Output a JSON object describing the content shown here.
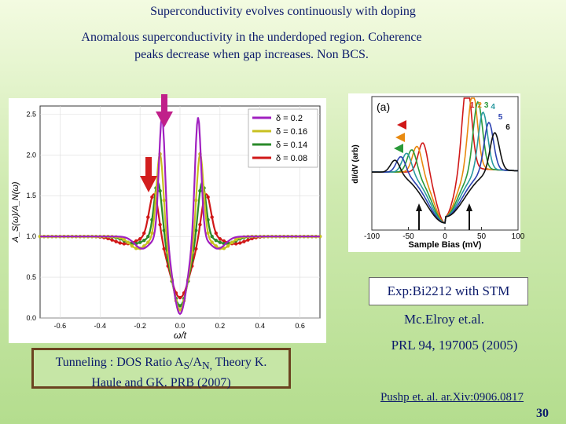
{
  "slide": {
    "title": "Superconductivity evolves continuously with doping",
    "subtitle_line1": "Anomalous superconductivity in the underdoped region. Coherence",
    "subtitle_line2": "peaks decrease when gap increases. Non BCS.",
    "exp_label": "Exp:Bi2212 with STM",
    "authors": "Mc.Elroy et.al.",
    "reference": "PRL 94, 197005 (2005)",
    "tunneling_line1_prefix": "Tunneling : DOS  Ratio A",
    "tunneling_sub1": "S",
    "tunneling_mid": "/A",
    "tunneling_sub2": "N,",
    "tunneling_line1_suffix": "  Theory K.",
    "tunneling_line2": "Haule and GK. PRB (2007)",
    "preprint_link": "Pushp et. al. ar.Xiv:0906.0817",
    "page_number": "30",
    "colors": {
      "text": "#0b1a6b",
      "arrow_magenta": "#c0208a",
      "arrow_red": "#d21e1e"
    }
  },
  "chart_data": [
    {
      "type": "line",
      "xlabel": "ω/t",
      "ylabel": "A_S(ω)/A_N(ω)",
      "xlim": [
        -0.7,
        0.7
      ],
      "ylim": [
        0.0,
        2.6
      ],
      "xticks": [
        "-0.6",
        "-0.4",
        "-0.2",
        "0.0",
        "0.2",
        "0.4",
        "0.6"
      ],
      "yticks": [
        "0.0",
        "0.5",
        "1.0",
        "1.5",
        "2.0",
        "2.5"
      ],
      "legend": [
        "δ = 0.2",
        "δ = 0.16",
        "δ = 0.14",
        "δ = 0.08"
      ],
      "series": [
        {
          "name": "δ = 0.2",
          "color": "#a020c0",
          "peak_omega": 0.09,
          "peak_height": 2.5,
          "dip": 0.05,
          "width": 0.022
        },
        {
          "name": "δ = 0.16",
          "color": "#c8c020",
          "peak_omega": 0.1,
          "peak_height": 2.05,
          "dip": 0.1,
          "width": 0.025
        },
        {
          "name": "δ = 0.14",
          "color": "#2a8a2a",
          "peak_omega": 0.11,
          "peak_height": 1.7,
          "dip": 0.15,
          "width": 0.028
        },
        {
          "name": "δ = 0.08",
          "color": "#d01818",
          "peak_omega": 0.13,
          "peak_height": 1.55,
          "dip": 0.25,
          "width": 0.034
        }
      ]
    },
    {
      "type": "line",
      "panel_label": "(a)",
      "xlabel": "Sample Bias (mV)",
      "ylabel": "dI/dV (arb)",
      "xlim": [
        -100,
        100
      ],
      "xticks": [
        "-100",
        "-50",
        "0",
        "50",
        "100"
      ],
      "curve_labels": [
        "1",
        "2",
        "3",
        "4",
        "5",
        "6"
      ],
      "series": [
        {
          "name": "1",
          "color": "#d01818",
          "gap_mV": 30
        },
        {
          "name": "2",
          "color": "#e88a10",
          "gap_mV": 38
        },
        {
          "name": "3",
          "color": "#2a9a3a",
          "gap_mV": 45
        },
        {
          "name": "4",
          "color": "#2a9aa0",
          "gap_mV": 52
        },
        {
          "name": "5",
          "color": "#2a40b0",
          "gap_mV": 60
        },
        {
          "name": "6",
          "color": "#111111",
          "gap_mV": 68
        }
      ]
    }
  ]
}
